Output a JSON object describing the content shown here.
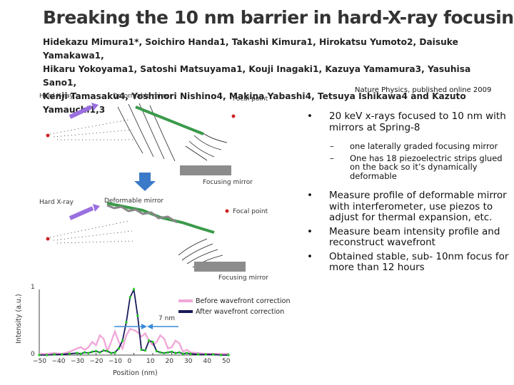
{
  "title": "Breaking the 10 nm barrier in hard-X-ray focusing",
  "authors": {
    "line1": "Hidekazu Mimura1*, Soichiro Handa1, Takashi Kimura1, Hirokatsu Yumoto2, Daisuke Yamakawa1,",
    "line2": "Hikaru Yokoyama1, Satoshi Matsuyama1, Kouji Inagaki1, Kazuya Yamamura3, Yasuhisa Sano1,",
    "line3": "Kenji Tamasaku4, Yoshinori Nishino4, Makina Yabashi4, Tetsuya Ishikawa4 and Kazuto Yamauchi1,3"
  },
  "citation": "Nature Physics, published online 2009",
  "bullets": [
    {
      "mark": "•",
      "text": "20 keV x-rays focused to 10 nm with mirrors at Spring-8"
    },
    {
      "mark": "•",
      "text": "Measure profile of deformable mirror with interferometer, use piezos to adjust for thermal expansion, etc."
    },
    {
      "mark": "•",
      "text": "Measure beam intensity profile and reconstruct wavefront"
    },
    {
      "mark": "•",
      "text": "Obtained stable, sub- 10nm focus for more than 12 hours"
    }
  ],
  "subbullets": [
    {
      "mark": "–",
      "text": "one laterally graded focusing mirror"
    },
    {
      "mark": "–",
      "text": "One has 18 piezoelectric strips glued on the back so it’s dynamically deformable"
    }
  ],
  "figure": {
    "top": {
      "hard_xray": "Hard X-ray",
      "deformable_mirror": "Deformable mirror",
      "focal_point": "Focal point",
      "focusing_mirror": "Focusing mirror"
    },
    "bottom": {
      "hard_xray": "Hard X-ray",
      "deformable_mirror": "Deformable mirror",
      "focal_point": "Focal point",
      "focusing_mirror": "Focusing mirror"
    },
    "colors": {
      "before": "#f0a8d8",
      "after": "#1a1a5a",
      "measured": "#22cc22",
      "arrow": "#9a70e0",
      "focus_dot": "#cc2222",
      "mirror_green": "#3a9a4a",
      "mirror_grey": "#8c8c8c",
      "width_arrow": "#3a8ad8"
    }
  },
  "chart_data": {
    "type": "line",
    "xlabel": "Position (nm)",
    "ylabel": "Intensity (a.u.)",
    "xlim": [
      -50,
      50
    ],
    "ylim": [
      0,
      1
    ],
    "xticks": [
      "−50",
      "−40",
      "−30",
      "−20",
      "−10",
      "0",
      "10",
      "20",
      "30",
      "40",
      "50"
    ],
    "yticks": [
      "0",
      "1"
    ],
    "annotation": "7 nm",
    "x": [
      -50,
      -46,
      -42,
      -38,
      -34,
      -30,
      -28,
      -26,
      -24,
      -22,
      -20,
      -18,
      -16,
      -14,
      -12,
      -10,
      -8,
      -6,
      -4,
      -2,
      0,
      2,
      4,
      6,
      8,
      10,
      12,
      14,
      16,
      18,
      20,
      22,
      24,
      26,
      28,
      30,
      34,
      38,
      42,
      46,
      50
    ],
    "series": [
      {
        "name": "Before wavefront correction",
        "values": [
          0.02,
          0.02,
          0.03,
          0.02,
          0.05,
          0.1,
          0.12,
          0.08,
          0.12,
          0.2,
          0.15,
          0.3,
          0.25,
          0.06,
          0.2,
          0.36,
          0.2,
          0.1,
          0.3,
          0.4,
          0.38,
          0.35,
          0.28,
          0.33,
          0.22,
          0.15,
          0.2,
          0.3,
          0.25,
          0.1,
          0.12,
          0.22,
          0.18,
          0.05,
          0.08,
          0.04,
          0.03,
          0.02,
          0.02,
          0.02,
          0.02
        ]
      },
      {
        "name": "After wavefront correction",
        "values": [
          0.0,
          0.0,
          0.01,
          0.01,
          0.02,
          0.03,
          0.02,
          0.04,
          0.03,
          0.05,
          0.06,
          0.04,
          0.07,
          0.06,
          0.03,
          0.04,
          0.1,
          0.22,
          0.5,
          0.88,
          1.0,
          0.6,
          0.08,
          0.07,
          0.22,
          0.2,
          0.06,
          0.04,
          0.03,
          0.04,
          0.05,
          0.03,
          0.04,
          0.02,
          0.03,
          0.02,
          0.01,
          0.01,
          0.01,
          0.0,
          0.0
        ]
      }
    ]
  }
}
